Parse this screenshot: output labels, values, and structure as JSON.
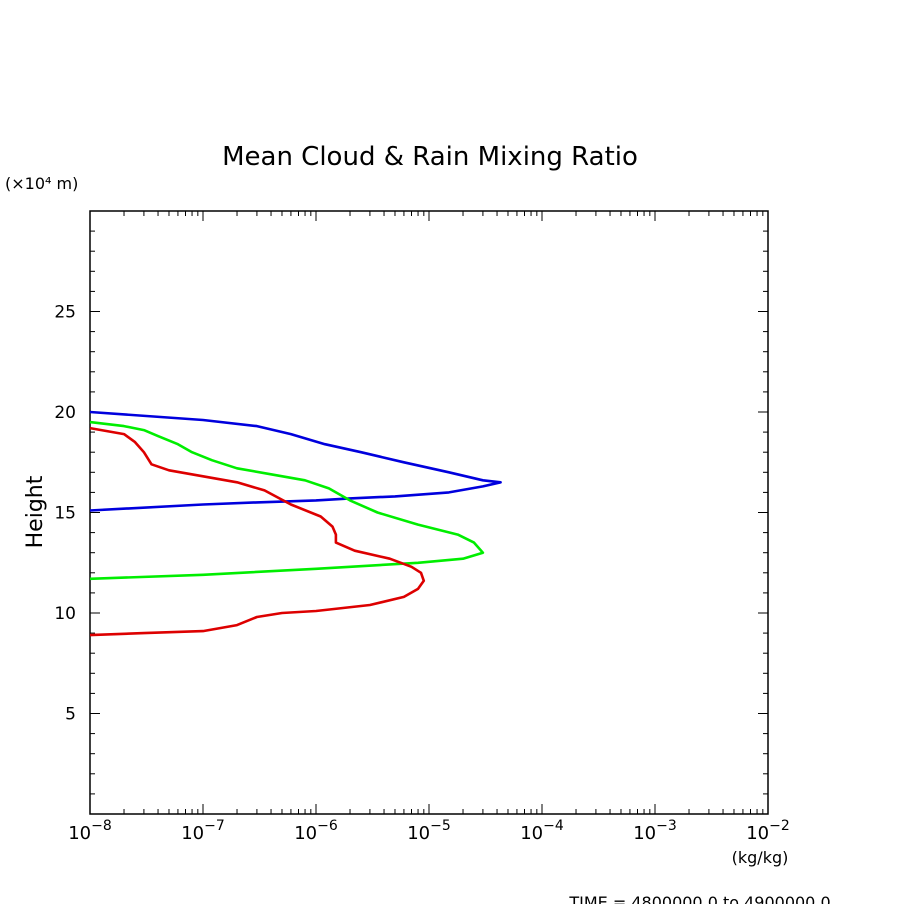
{
  "chart_data": {
    "type": "line",
    "title": "Mean Cloud & Rain Mixing Ratio",
    "ylabel": "Height",
    "yunit": "(×10⁴ m)",
    "xunit": "(kg/kg)",
    "xscale": "log",
    "xlim": [
      1e-08,
      0.01
    ],
    "ylim": [
      0,
      30
    ],
    "x_tick_labels": [
      {
        "base": "10",
        "exp": "−8",
        "value": 1e-08
      },
      {
        "base": "10",
        "exp": "−7",
        "value": 1e-07
      },
      {
        "base": "10",
        "exp": "−6",
        "value": 1e-06
      },
      {
        "base": "10",
        "exp": "−5",
        "value": 1e-05
      },
      {
        "base": "10",
        "exp": "−4",
        "value": 0.0001
      },
      {
        "base": "10",
        "exp": "−3",
        "value": 0.001
      },
      {
        "base": "10",
        "exp": "−2",
        "value": 0.01
      }
    ],
    "y_tick_labels": [
      {
        "label": "5",
        "value": 5
      },
      {
        "label": "10",
        "value": 10
      },
      {
        "label": "15",
        "value": 15
      },
      {
        "label": "20",
        "value": 20
      },
      {
        "label": "25",
        "value": 25
      }
    ],
    "footer": "TIME = 4800000.0 to 4900000.0",
    "grid": false,
    "series": [
      {
        "color": "#0000dd",
        "points": [
          [
            1e-08,
            20.0
          ],
          [
            1e-07,
            19.6
          ],
          [
            3e-07,
            19.3
          ],
          [
            6e-07,
            18.9
          ],
          [
            1.2e-06,
            18.4
          ],
          [
            2.5e-06,
            18.0
          ],
          [
            6e-06,
            17.5
          ],
          [
            1.5e-05,
            17.0
          ],
          [
            3e-05,
            16.6
          ],
          [
            4.3e-05,
            16.5
          ],
          [
            3e-05,
            16.3
          ],
          [
            1.5e-05,
            16.0
          ],
          [
            5e-06,
            15.8
          ],
          [
            2e-06,
            15.7
          ],
          [
            1e-06,
            15.6
          ],
          [
            3e-07,
            15.5
          ],
          [
            1e-07,
            15.4
          ],
          [
            1e-08,
            15.1
          ]
        ]
      },
      {
        "color": "#00ee00",
        "points": [
          [
            1e-08,
            19.5
          ],
          [
            2e-08,
            19.3
          ],
          [
            3e-08,
            19.1
          ],
          [
            4e-08,
            18.8
          ],
          [
            6e-08,
            18.4
          ],
          [
            8e-08,
            18.0
          ],
          [
            1.2e-07,
            17.6
          ],
          [
            2e-07,
            17.2
          ],
          [
            4e-07,
            16.9
          ],
          [
            8e-07,
            16.6
          ],
          [
            1.3e-06,
            16.2
          ],
          [
            2e-06,
            15.6
          ],
          [
            3.5e-06,
            15.0
          ],
          [
            8e-06,
            14.4
          ],
          [
            1.8e-05,
            13.9
          ],
          [
            2.5e-05,
            13.5
          ],
          [
            3e-05,
            13.0
          ],
          [
            2e-05,
            12.7
          ],
          [
            8e-06,
            12.5
          ],
          [
            1e-06,
            12.2
          ],
          [
            1e-07,
            11.9
          ],
          [
            1e-08,
            11.7
          ]
        ]
      },
      {
        "color": "#dd0000",
        "points": [
          [
            1e-08,
            19.2
          ],
          [
            2e-08,
            18.9
          ],
          [
            2.5e-08,
            18.5
          ],
          [
            3e-08,
            18.0
          ],
          [
            3.5e-08,
            17.4
          ],
          [
            5e-08,
            17.1
          ],
          [
            1e-07,
            16.8
          ],
          [
            2e-07,
            16.5
          ],
          [
            3.5e-07,
            16.1
          ],
          [
            6e-07,
            15.4
          ],
          [
            1.1e-06,
            14.8
          ],
          [
            1.4e-06,
            14.3
          ],
          [
            1.5e-06,
            13.9
          ],
          [
            1.5e-06,
            13.5
          ],
          [
            2.2e-06,
            13.1
          ],
          [
            4.5e-06,
            12.7
          ],
          [
            7e-06,
            12.3
          ],
          [
            8.5e-06,
            12.0
          ],
          [
            9e-06,
            11.6
          ],
          [
            8e-06,
            11.2
          ],
          [
            6e-06,
            10.8
          ],
          [
            3e-06,
            10.4
          ],
          [
            1e-06,
            10.1
          ],
          [
            5e-07,
            10.0
          ],
          [
            3e-07,
            9.8
          ],
          [
            2e-07,
            9.4
          ],
          [
            1e-07,
            9.1
          ],
          [
            3e-08,
            9.0
          ],
          [
            1e-08,
            8.9
          ]
        ]
      }
    ]
  }
}
